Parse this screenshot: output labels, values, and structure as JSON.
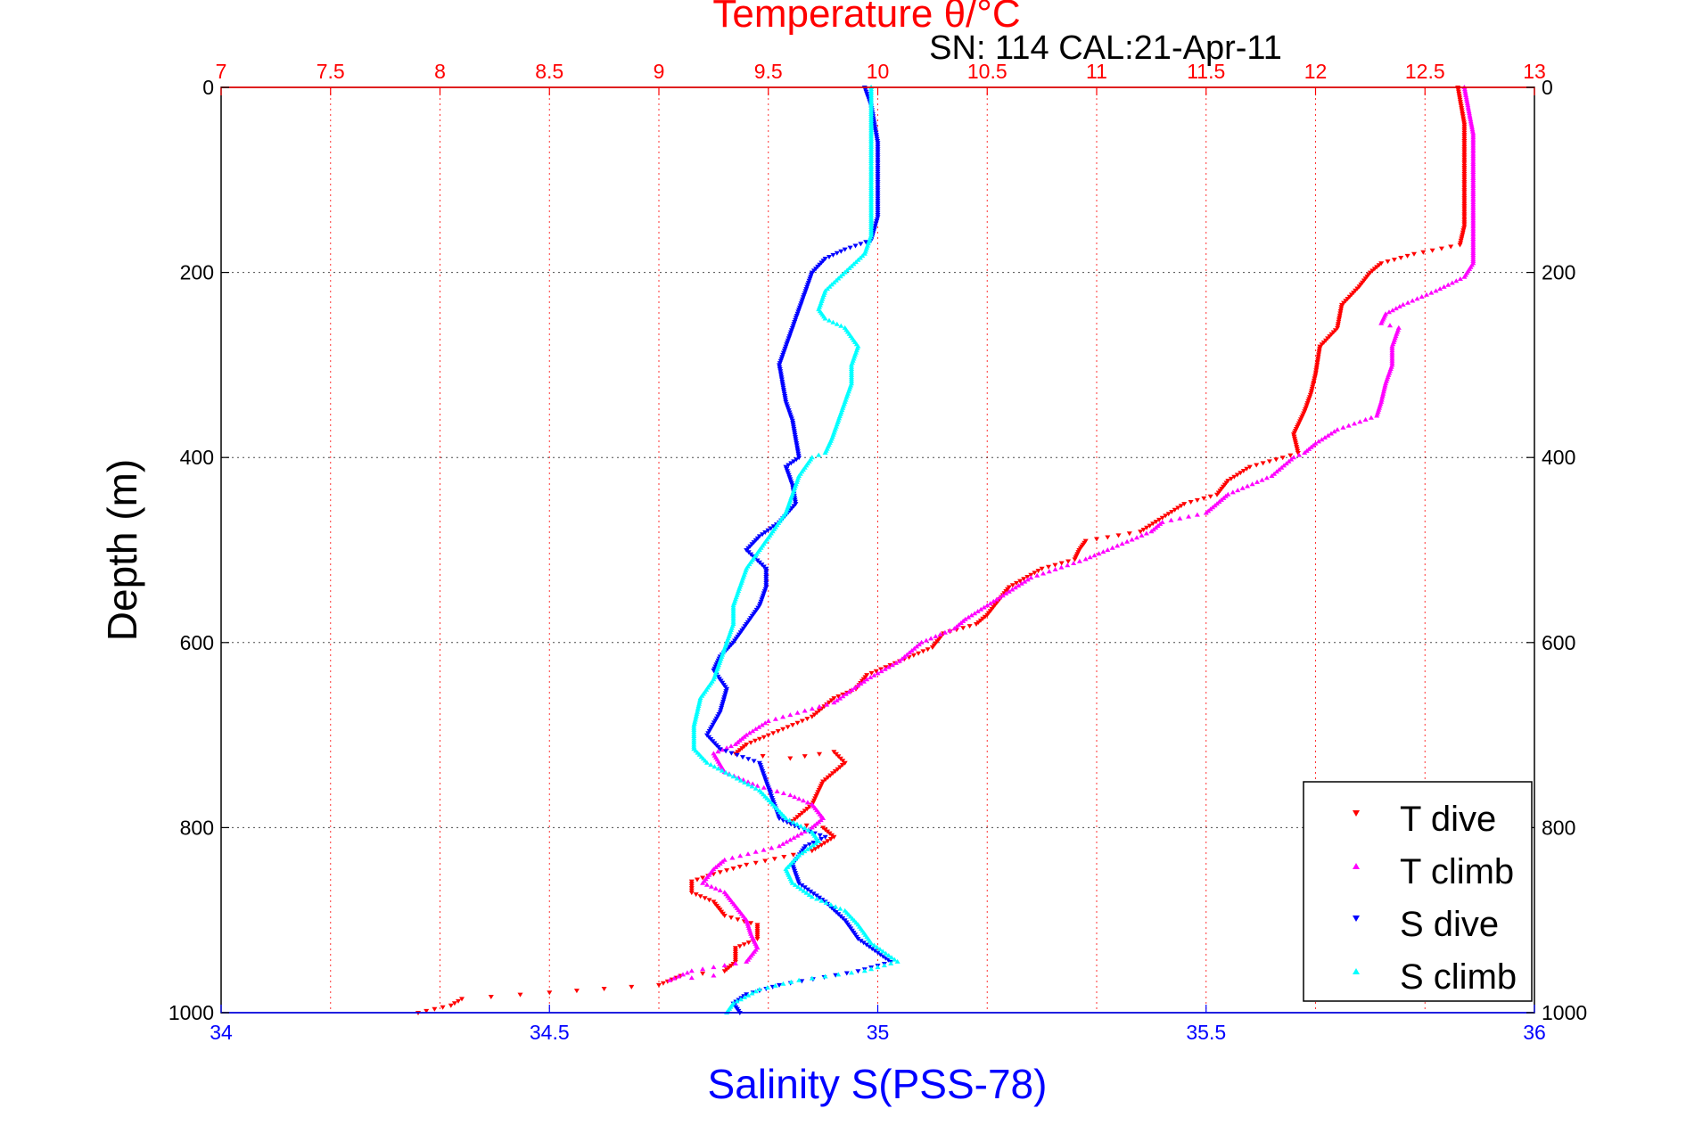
{
  "chart_data": {
    "type": "scatter",
    "title": "Temperature θ/°C",
    "subtitle": "SN: 114  CAL:21-Apr-11",
    "ylabel": "Depth (m)",
    "xlabel": "Salinity S(PSS-78)",
    "grid": true,
    "legend_position": "bottom-right",
    "y_axis": {
      "range": [
        0,
        1000
      ],
      "reversed": true,
      "ticks": [
        "0",
        "200",
        "400",
        "600",
        "800",
        "1000"
      ]
    },
    "top_axis": {
      "label": "Temperature θ/°C",
      "range": [
        7,
        13
      ],
      "ticks": [
        "7",
        "7.5",
        "8",
        "8.5",
        "9",
        "9.5",
        "10",
        "10.5",
        "11",
        "11.5",
        "12",
        "12.5",
        "13"
      ],
      "color": "#ff0000"
    },
    "bottom_axis": {
      "label": "Salinity S(PSS-78)",
      "range": [
        34,
        36
      ],
      "ticks": [
        "34",
        "34.5",
        "35",
        "35.5",
        "36"
      ],
      "color": "#0000ff"
    },
    "series": [
      {
        "name": "T dive",
        "axis": "top",
        "color": "#ff0000",
        "marker": "triangle-down",
        "points": [
          [
            12.65,
            0
          ],
          [
            12.68,
            40
          ],
          [
            12.68,
            100
          ],
          [
            12.68,
            150
          ],
          [
            12.66,
            170
          ],
          [
            12.45,
            180
          ],
          [
            12.3,
            190
          ],
          [
            12.25,
            200
          ],
          [
            12.2,
            215
          ],
          [
            12.12,
            235
          ],
          [
            12.1,
            260
          ],
          [
            12.02,
            280
          ],
          [
            12.0,
            310
          ],
          [
            11.98,
            330
          ],
          [
            11.95,
            350
          ],
          [
            11.92,
            365
          ],
          [
            11.9,
            375
          ],
          [
            11.92,
            395
          ],
          [
            11.85,
            400
          ],
          [
            11.7,
            410
          ],
          [
            11.6,
            425
          ],
          [
            11.55,
            440
          ],
          [
            11.4,
            450
          ],
          [
            11.3,
            465
          ],
          [
            11.2,
            480
          ],
          [
            10.95,
            490
          ],
          [
            10.92,
            500
          ],
          [
            10.9,
            510
          ],
          [
            10.75,
            520
          ],
          [
            10.6,
            540
          ],
          [
            10.55,
            555
          ],
          [
            10.5,
            570
          ],
          [
            10.45,
            580
          ],
          [
            10.3,
            590
          ],
          [
            10.25,
            605
          ],
          [
            10.1,
            620
          ],
          [
            9.95,
            635
          ],
          [
            9.9,
            650
          ],
          [
            9.8,
            660
          ],
          [
            9.7,
            680
          ],
          [
            9.5,
            700
          ],
          [
            9.4,
            710
          ],
          [
            9.35,
            720
          ],
          [
            9.6,
            725
          ],
          [
            9.8,
            718
          ],
          [
            9.85,
            730
          ],
          [
            9.75,
            750
          ],
          [
            9.7,
            775
          ],
          [
            9.6,
            795
          ],
          [
            9.75,
            800
          ],
          [
            9.8,
            810
          ],
          [
            9.7,
            825
          ],
          [
            9.4,
            840
          ],
          [
            9.25,
            850
          ],
          [
            9.15,
            858
          ],
          [
            9.15,
            870
          ],
          [
            9.25,
            880
          ],
          [
            9.3,
            895
          ],
          [
            9.45,
            905
          ],
          [
            9.45,
            920
          ],
          [
            9.35,
            930
          ],
          [
            9.35,
            945
          ],
          [
            9.3,
            955
          ],
          [
            9.1,
            960
          ],
          [
            9.0,
            970
          ],
          [
            8.5,
            978
          ],
          [
            8.1,
            985
          ],
          [
            8.05,
            992
          ],
          [
            7.9,
            1000
          ]
        ]
      },
      {
        "name": "T climb",
        "axis": "top",
        "color": "#ff00ff",
        "marker": "triangle-up",
        "points": [
          [
            12.68,
            0
          ],
          [
            12.72,
            50
          ],
          [
            12.72,
            120
          ],
          [
            12.72,
            190
          ],
          [
            12.68,
            205
          ],
          [
            12.55,
            220
          ],
          [
            12.4,
            235
          ],
          [
            12.32,
            245
          ],
          [
            12.3,
            255
          ],
          [
            12.38,
            260
          ],
          [
            12.35,
            280
          ],
          [
            12.35,
            300
          ],
          [
            12.32,
            320
          ],
          [
            12.3,
            340
          ],
          [
            12.28,
            355
          ],
          [
            12.1,
            370
          ],
          [
            12.0,
            385
          ],
          [
            11.95,
            395
          ],
          [
            11.9,
            400
          ],
          [
            11.8,
            420
          ],
          [
            11.6,
            440
          ],
          [
            11.55,
            450
          ],
          [
            11.5,
            460
          ],
          [
            11.3,
            470
          ],
          [
            11.25,
            480
          ],
          [
            11.05,
            500
          ],
          [
            10.95,
            510
          ],
          [
            10.7,
            530
          ],
          [
            10.6,
            545
          ],
          [
            10.5,
            560
          ],
          [
            10.4,
            575
          ],
          [
            10.35,
            585
          ],
          [
            10.2,
            600
          ],
          [
            10.1,
            620
          ],
          [
            9.95,
            640
          ],
          [
            9.8,
            665
          ],
          [
            9.5,
            685
          ],
          [
            9.4,
            700
          ],
          [
            9.35,
            710
          ],
          [
            9.25,
            720
          ],
          [
            9.3,
            740
          ],
          [
            9.45,
            755
          ],
          [
            9.6,
            765
          ],
          [
            9.7,
            775
          ],
          [
            9.75,
            790
          ],
          [
            9.7,
            800
          ],
          [
            9.55,
            820
          ],
          [
            9.3,
            835
          ],
          [
            9.25,
            845
          ],
          [
            9.2,
            860
          ],
          [
            9.3,
            870
          ],
          [
            9.35,
            885
          ],
          [
            9.4,
            900
          ],
          [
            9.42,
            915
          ],
          [
            9.45,
            930
          ],
          [
            9.4,
            945
          ],
          [
            9.15,
            955
          ],
          [
            9.05,
            965
          ],
          [
            9.25,
            960
          ]
        ]
      },
      {
        "name": "S dive",
        "axis": "bottom",
        "color": "#0000ff",
        "marker": "triangle-down",
        "points": [
          [
            34.98,
            0
          ],
          [
            34.99,
            20
          ],
          [
            35.0,
            60
          ],
          [
            35.0,
            100
          ],
          [
            35.0,
            140
          ],
          [
            34.99,
            165
          ],
          [
            34.95,
            175
          ],
          [
            34.92,
            185
          ],
          [
            34.9,
            200
          ],
          [
            34.89,
            220
          ],
          [
            34.88,
            240
          ],
          [
            34.87,
            260
          ],
          [
            34.86,
            280
          ],
          [
            34.85,
            300
          ],
          [
            34.855,
            320
          ],
          [
            34.86,
            340
          ],
          [
            34.87,
            360
          ],
          [
            34.875,
            380
          ],
          [
            34.88,
            400
          ],
          [
            34.86,
            410
          ],
          [
            34.87,
            430
          ],
          [
            34.875,
            450
          ],
          [
            34.85,
            470
          ],
          [
            34.82,
            485
          ],
          [
            34.8,
            500
          ],
          [
            34.83,
            520
          ],
          [
            34.83,
            540
          ],
          [
            34.82,
            560
          ],
          [
            34.8,
            580
          ],
          [
            34.78,
            600
          ],
          [
            34.76,
            615
          ],
          [
            34.75,
            630
          ],
          [
            34.77,
            650
          ],
          [
            34.76,
            675
          ],
          [
            34.74,
            700
          ],
          [
            34.76,
            715
          ],
          [
            34.82,
            730
          ],
          [
            34.83,
            750
          ],
          [
            34.84,
            770
          ],
          [
            34.85,
            790
          ],
          [
            34.88,
            800
          ],
          [
            34.92,
            810
          ],
          [
            34.89,
            820
          ],
          [
            34.87,
            840
          ],
          [
            34.88,
            860
          ],
          [
            34.92,
            880
          ],
          [
            34.95,
            900
          ],
          [
            34.97,
            920
          ],
          [
            35.0,
            935
          ],
          [
            35.02,
            945
          ],
          [
            34.97,
            955
          ],
          [
            34.85,
            970
          ],
          [
            34.8,
            980
          ],
          [
            34.78,
            990
          ],
          [
            34.79,
            1000
          ]
        ]
      },
      {
        "name": "S climb",
        "axis": "bottom",
        "color": "#00ffff",
        "marker": "triangle-up",
        "points": [
          [
            34.99,
            0
          ],
          [
            34.99,
            40
          ],
          [
            34.99,
            80
          ],
          [
            34.99,
            120
          ],
          [
            34.99,
            160
          ],
          [
            34.98,
            180
          ],
          [
            34.95,
            200
          ],
          [
            34.92,
            220
          ],
          [
            34.91,
            240
          ],
          [
            34.92,
            250
          ],
          [
            34.95,
            260
          ],
          [
            34.97,
            280
          ],
          [
            34.96,
            300
          ],
          [
            34.96,
            320
          ],
          [
            34.95,
            340
          ],
          [
            34.94,
            360
          ],
          [
            34.93,
            380
          ],
          [
            34.92,
            395
          ],
          [
            34.9,
            400
          ],
          [
            34.88,
            420
          ],
          [
            34.87,
            440
          ],
          [
            34.86,
            460
          ],
          [
            34.84,
            480
          ],
          [
            34.82,
            500
          ],
          [
            34.8,
            520
          ],
          [
            34.79,
            540
          ],
          [
            34.78,
            560
          ],
          [
            34.78,
            580
          ],
          [
            34.77,
            600
          ],
          [
            34.76,
            620
          ],
          [
            34.75,
            640
          ],
          [
            34.73,
            660
          ],
          [
            34.72,
            690
          ],
          [
            34.72,
            715
          ],
          [
            34.74,
            730
          ],
          [
            34.78,
            745
          ],
          [
            34.82,
            760
          ],
          [
            34.84,
            775
          ],
          [
            34.86,
            790
          ],
          [
            34.9,
            805
          ],
          [
            34.91,
            815
          ],
          [
            34.88,
            830
          ],
          [
            34.86,
            845
          ],
          [
            34.87,
            860
          ],
          [
            34.9,
            875
          ],
          [
            34.95,
            890
          ],
          [
            34.97,
            905
          ],
          [
            34.99,
            925
          ],
          [
            35.03,
            945
          ],
          [
            34.98,
            955
          ],
          [
            34.88,
            965
          ],
          [
            34.82,
            975
          ],
          [
            34.78,
            990
          ],
          [
            34.77,
            1000
          ]
        ]
      }
    ]
  }
}
